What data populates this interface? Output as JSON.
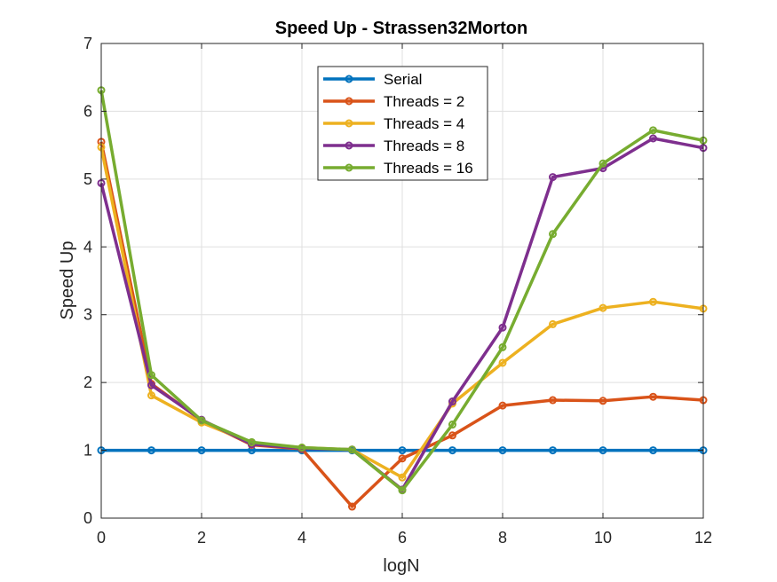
{
  "chart_data": {
    "type": "line",
    "title": "Speed Up - Strassen32Morton",
    "xlabel": "logN",
    "ylabel": "Speed Up",
    "xlim": [
      0,
      12
    ],
    "ylim": [
      0,
      7
    ],
    "xticks": [
      0,
      2,
      4,
      6,
      8,
      10,
      12
    ],
    "yticks": [
      0,
      1,
      2,
      3,
      4,
      5,
      6,
      7
    ],
    "grid": true,
    "legend_position": "top-center",
    "x": [
      0,
      1,
      2,
      3,
      4,
      5,
      6,
      7,
      8,
      9,
      10,
      11,
      12
    ],
    "series": [
      {
        "name": "Serial",
        "color": "#0072BD",
        "values": [
          1,
          1,
          1,
          1,
          1,
          1,
          1,
          1,
          1,
          1,
          1,
          1,
          1
        ]
      },
      {
        "name": "Threads = 2",
        "color": "#D95319",
        "values": [
          5.55,
          1.98,
          1.44,
          1.08,
          1.02,
          0.17,
          0.88,
          1.22,
          1.66,
          1.74,
          1.73,
          1.79,
          1.74
        ]
      },
      {
        "name": "Threads = 4",
        "color": "#EDB120",
        "values": [
          5.47,
          1.81,
          1.41,
          1.11,
          1.04,
          1.01,
          0.6,
          1.69,
          2.29,
          2.86,
          3.1,
          3.19,
          3.09
        ]
      },
      {
        "name": "Threads = 8",
        "color": "#7E2F8E",
        "values": [
          4.94,
          1.96,
          1.45,
          1.09,
          1.03,
          1.01,
          0.42,
          1.72,
          2.81,
          5.03,
          5.16,
          5.6,
          5.46
        ]
      },
      {
        "name": "Threads = 16",
        "color": "#77AC30",
        "values": [
          6.31,
          2.11,
          1.44,
          1.12,
          1.04,
          1.01,
          0.41,
          1.38,
          2.52,
          4.19,
          5.23,
          5.72,
          5.57
        ]
      }
    ]
  }
}
